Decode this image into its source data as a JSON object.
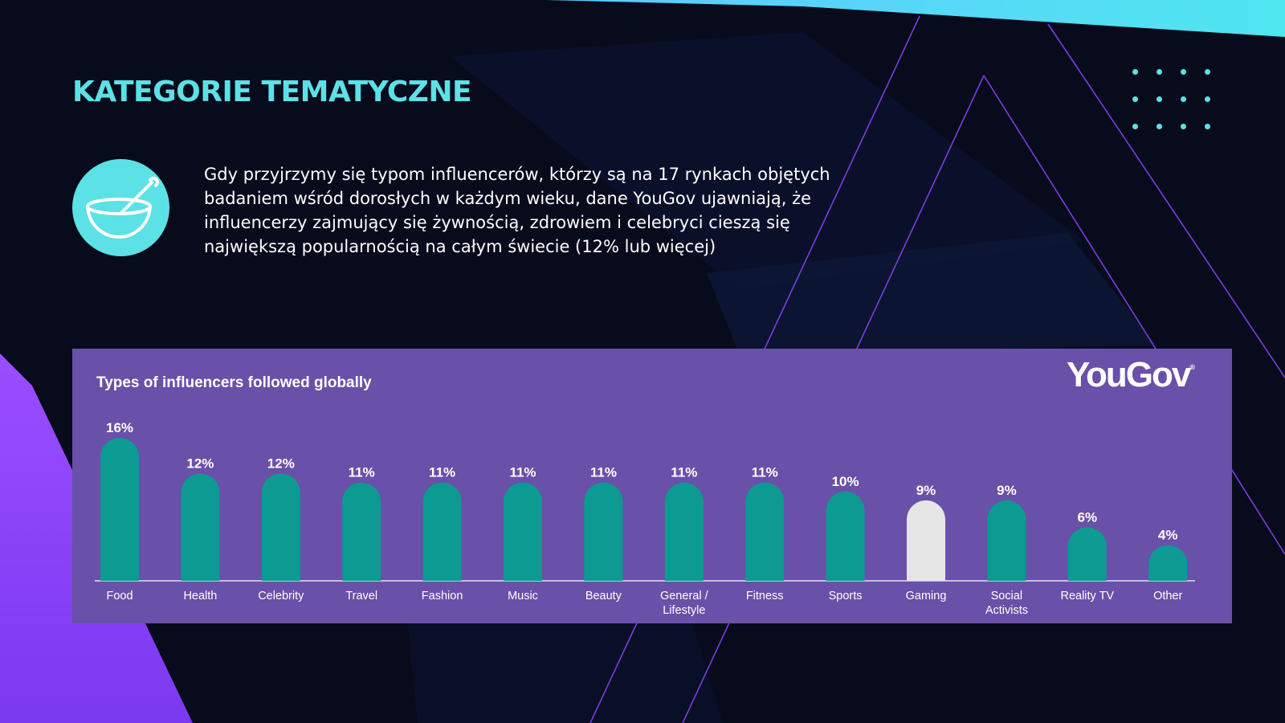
{
  "page": {
    "heading": "KATEGORIE TEMATYCZNE",
    "intro": "Gdy przyjrzymy się typom influencerów, którzy są na 17 rynkach objętych badaniem wśród dorosłych w każdym wieku, dane YouGov ujawniają, że influencerzy zajmujący się żywnością, zdrowiem i celebryci cieszą się największą popularnością na całym świecie (12% lub więcej)",
    "icon": "bowl-and-spoon-icon",
    "logo": "YouGov",
    "logo_mark": "®"
  },
  "colors": {
    "background": "#070b1c",
    "accent": "#5ce1e6",
    "panel": "#6950a8",
    "bar": "#0d9a92",
    "bar_highlight": "#e6e6e6",
    "purple_shape": "#8c3cff",
    "top_gradient_start": "#5ec8ff",
    "top_gradient_end": "#4fe6f0"
  },
  "chart_data": {
    "type": "bar",
    "title": "Types of influencers followed globally",
    "categories": [
      "Food",
      "Health",
      "Celebrity",
      "Travel",
      "Fashion",
      "Music",
      "Beauty",
      "General / Lifestyle",
      "Fitness",
      "Sports",
      "Gaming",
      "Social Activists",
      "Reality TV",
      "Other"
    ],
    "category_lines": [
      [
        "Food"
      ],
      [
        "Health"
      ],
      [
        "Celebrity"
      ],
      [
        "Travel"
      ],
      [
        "Fashion"
      ],
      [
        "Music"
      ],
      [
        "Beauty"
      ],
      [
        "General /",
        "Lifestyle"
      ],
      [
        "Fitness"
      ],
      [
        "Sports"
      ],
      [
        "Gaming"
      ],
      [
        "Social",
        "Activists"
      ],
      [
        "Reality TV"
      ],
      [
        "Other"
      ]
    ],
    "values": [
      16,
      12,
      12,
      11,
      11,
      11,
      11,
      11,
      11,
      10,
      9,
      9,
      6,
      4
    ],
    "value_labels": [
      "16%",
      "12%",
      "12%",
      "11%",
      "11%",
      "11%",
      "11%",
      "11%",
      "11%",
      "10%",
      "9%",
      "9%",
      "6%",
      "4%"
    ],
    "highlight": "Gaming",
    "ylim": [
      0,
      16
    ],
    "grid": false
  }
}
